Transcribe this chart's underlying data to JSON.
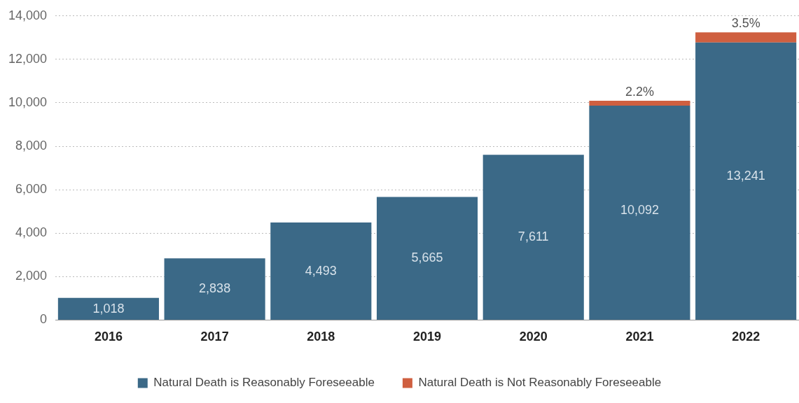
{
  "chart_data": {
    "type": "bar",
    "stacked": true,
    "categories": [
      "2016",
      "2017",
      "2018",
      "2019",
      "2020",
      "2021",
      "2022"
    ],
    "series": [
      {
        "name": "Natural Death is Reasonably Foreseeable",
        "color": "#3b6987",
        "values": [
          1018,
          2838,
          4493,
          5665,
          7611,
          9870,
          12778
        ]
      },
      {
        "name": "Natural Death is Not Reasonably Foreseeable",
        "color": "#cf5f40",
        "values": [
          null,
          null,
          null,
          null,
          null,
          222,
          463
        ]
      }
    ],
    "annotations": [
      {
        "text": "2.2%",
        "x": "2021",
        "y": 10092
      },
      {
        "text": "3.5%",
        "x": "2022",
        "y": 13241
      }
    ],
    "totals": [
      "1,018",
      "2,838",
      "4,493",
      "5,665",
      "7,611",
      "10,092",
      "13,241"
    ],
    "ylim": [
      0,
      14000
    ],
    "yticks": [
      {
        "value": 0,
        "label": "0"
      },
      {
        "value": 2000,
        "label": "2,000"
      },
      {
        "value": 4000,
        "label": "4,000"
      },
      {
        "value": 6000,
        "label": "6,000"
      },
      {
        "value": 8000,
        "label": "8,000"
      },
      {
        "value": 10000,
        "label": "10,000"
      },
      {
        "value": 12000,
        "label": "12,000"
      },
      {
        "value": 14000,
        "label": "14,000"
      }
    ],
    "grid": "y",
    "legend": "bottom"
  }
}
